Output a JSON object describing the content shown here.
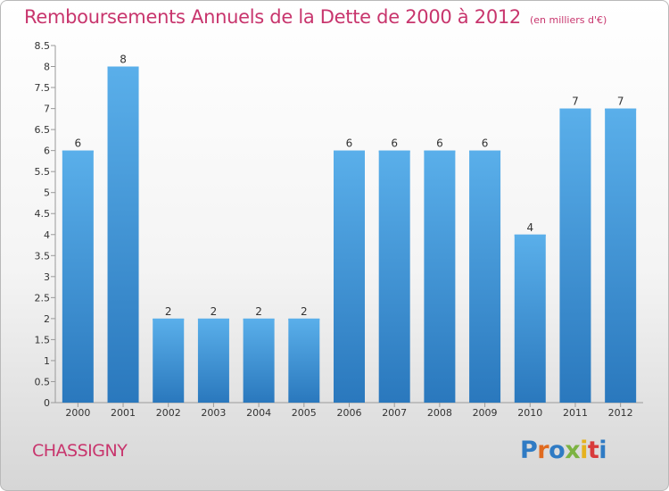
{
  "title": "Remboursements Annuels de la Dette de 2000 à 2012",
  "unit_note": "(en milliers d'€)",
  "commune": "CHASSIGNY",
  "logo": {
    "letters": [
      "P",
      "r",
      "o",
      "x",
      "i",
      "t",
      "i"
    ],
    "colors": [
      "#2f7bc4",
      "#e06a1f",
      "#2f7bc4",
      "#7cb342",
      "#e6b21e",
      "#d83b3b",
      "#2f7bc4"
    ]
  },
  "colors": {
    "bar": "#3f95d8",
    "bar_light": "#5aafea",
    "bar_dark": "#2a78bd",
    "title": "#c8356d"
  },
  "chart_data": {
    "type": "bar",
    "title": "Remboursements Annuels de la Dette de 2000 à 2012",
    "categories": [
      "2000",
      "2001",
      "2002",
      "2003",
      "2004",
      "2005",
      "2006",
      "2007",
      "2008",
      "2009",
      "2010",
      "2011",
      "2012"
    ],
    "values": [
      6,
      8,
      2,
      2,
      2,
      2,
      6,
      6,
      6,
      6,
      4,
      7,
      7
    ],
    "ylim": [
      0,
      8.5
    ],
    "yticks": [
      "0",
      "0.5",
      "1",
      "1.5",
      "2",
      "2.5",
      "3",
      "3.5",
      "4",
      "4.5",
      "5",
      "5.5",
      "6",
      "6.5",
      "7",
      "7.5",
      "8",
      "8.5"
    ],
    "grid": false,
    "data_labels": true
  }
}
